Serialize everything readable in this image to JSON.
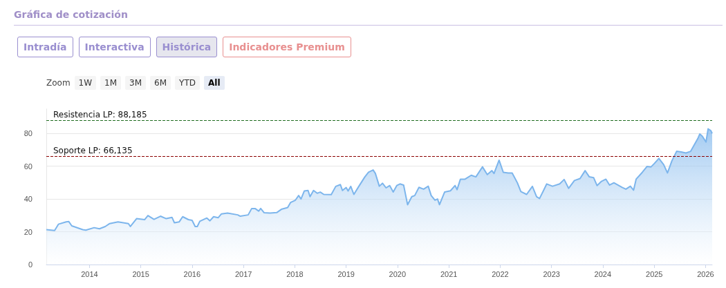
{
  "chart_data": {
    "type": "area",
    "title": "Gráfica de cotización",
    "annotations": [
      "Intradía",
      "Interactiva",
      "Histórica",
      "Indicadores Premium",
      "Zoom",
      "1W",
      "1M",
      "3M",
      "6M",
      "YTD",
      "All"
    ],
    "x": [
      "2013-02-28",
      "2013-04-28",
      "2013-05-25",
      "2013-07-19",
      "2013-08-07",
      "2013-08-28",
      "2013-11-14",
      "2013-12-06",
      "2014-02-03",
      "2014-03-13",
      "2014-04-23",
      "2014-05-25",
      "2014-07-23",
      "2014-10-05",
      "2014-10-19",
      "2014-12-02",
      "2015-01-28",
      "2015-02-21",
      "2015-04-05",
      "2015-05-21",
      "2015-07-01",
      "2015-08-11",
      "2015-08-28",
      "2015-10-01",
      "2015-10-26",
      "2015-12-06",
      "2016-01-01",
      "2016-01-23",
      "2016-02-07",
      "2016-02-25",
      "2016-04-15",
      "2016-05-07",
      "2016-06-02",
      "2016-07-05",
      "2016-07-28",
      "2016-09-09",
      "2016-11-21",
      "2016-12-09",
      "2017-02-03",
      "2017-02-28",
      "2017-03-24",
      "2017-04-19",
      "2017-05-03",
      "2017-05-28",
      "2017-07-08",
      "2017-08-25",
      "2017-09-27",
      "2017-11-11",
      "2017-12-02",
      "2018-01-05",
      "2018-01-28",
      "2018-02-14",
      "2018-03-09",
      "2018-04-05",
      "2018-04-19",
      "2018-05-14",
      "2018-06-09",
      "2018-07-01",
      "2018-07-26",
      "2018-09-17",
      "2018-10-19",
      "2018-11-21",
      "2018-12-06",
      "2019-01-01",
      "2019-01-15",
      "2019-02-03",
      "2019-02-25",
      "2019-04-01",
      "2019-05-14",
      "2019-06-09",
      "2019-07-12",
      "2019-07-28",
      "2019-08-25",
      "2019-09-17",
      "2019-10-12",
      "2019-11-07",
      "2019-12-02",
      "2019-12-27",
      "2020-01-19",
      "2020-02-14",
      "2020-03-13",
      "2020-04-12",
      "2020-05-03",
      "2020-06-02",
      "2020-07-05",
      "2020-08-07",
      "2020-08-28",
      "2020-09-24",
      "2020-10-12",
      "2020-10-26",
      "2020-12-02",
      "2021-01-12",
      "2021-02-14",
      "2021-02-28",
      "2021-03-24",
      "2021-04-26",
      "2021-06-09",
      "2021-07-12",
      "2021-08-28",
      "2021-10-01",
      "2021-11-03",
      "2021-11-18",
      "2021-12-24",
      "2022-01-23",
      "2022-02-28",
      "2022-03-27",
      "2022-05-03",
      "2022-05-28",
      "2022-07-08",
      "2022-08-18",
      "2022-09-17",
      "2022-10-08",
      "2022-11-03",
      "2022-11-28",
      "2023-01-08",
      "2023-02-28",
      "2023-04-01",
      "2023-05-03",
      "2023-06-13",
      "2023-07-23",
      "2023-08-28",
      "2023-09-27",
      "2023-10-28",
      "2023-11-21",
      "2023-12-20",
      "2024-01-23",
      "2024-02-18",
      "2024-03-20",
      "2024-05-18",
      "2024-06-13",
      "2024-07-15",
      "2024-08-07",
      "2024-08-25",
      "2024-10-08",
      "2024-11-11",
      "2024-12-09",
      "2025-01-01",
      "2025-02-03",
      "2025-03-09",
      "2025-04-05",
      "2025-05-07",
      "2025-06-09",
      "2025-07-12",
      "2025-08-14",
      "2025-09-17",
      "2025-11-07",
      "2025-11-21",
      "2025-12-09",
      "2026-01-04",
      "2026-01-19",
      "2026-02-07",
      "2026-02-17"
    ],
    "series": [
      {
        "color": "#7cb5ec",
        "values": [
          21.3,
          20.8,
          24.6,
          26,
          26.2,
          23.6,
          21.3,
          21,
          22.5,
          21.8,
          23.2,
          25,
          26,
          25,
          23.2,
          28,
          27.4,
          29.9,
          27.6,
          29.5,
          28,
          28.8,
          25.5,
          26,
          29.2,
          27.4,
          27,
          23.2,
          23.2,
          26.4,
          28.4,
          26.7,
          29.2,
          28.6,
          30.9,
          31.4,
          30.3,
          29.5,
          30.3,
          34.2,
          34.2,
          32.6,
          34.2,
          31.6,
          31.4,
          31.7,
          33.7,
          34.8,
          37.9,
          39.3,
          42.1,
          40,
          44.9,
          45.2,
          41.4,
          45.2,
          43.5,
          44.2,
          42.8,
          42.7,
          47.7,
          48.8,
          45.2,
          47,
          44.9,
          47.7,
          42.8,
          47.7,
          53.5,
          56.3,
          57.7,
          55.6,
          47.8,
          49.6,
          46.8,
          48.2,
          44.3,
          48.2,
          49.2,
          48.5,
          36.5,
          41.4,
          42.1,
          47.1,
          46,
          47.8,
          42.1,
          39.3,
          40,
          36.5,
          44.3,
          45,
          48.2,
          45.7,
          52.1,
          52.1,
          54.5,
          53.5,
          59.6,
          54.9,
          57.3,
          55.6,
          63.7,
          56.3,
          55.9,
          55.9,
          49.9,
          44.5,
          42.8,
          47.7,
          41.4,
          40.3,
          44.8,
          49.2,
          47.8,
          49.2,
          51.9,
          46.5,
          51.3,
          52.5,
          57.3,
          53.5,
          53,
          48.2,
          50.6,
          52.1,
          48.5,
          49.9,
          47.1,
          46,
          47.8,
          45.4,
          52.1,
          56.3,
          59.9,
          59.6,
          61.6,
          64.8,
          61,
          55.9,
          63.4,
          69.1,
          68.7,
          68.1,
          69.1,
          76.9,
          79.7,
          78.3,
          74.8,
          82.8,
          81.8,
          80
        ]
      }
    ],
    "xlim": [
      "2013-02-28",
      "2026-02-17"
    ],
    "xticks": [
      {
        "value": "2014",
        "label": "2014"
      },
      {
        "value": "2015",
        "label": "2015"
      },
      {
        "value": "2016",
        "label": "2016"
      },
      {
        "value": "2017",
        "label": "2017"
      },
      {
        "value": "2018",
        "label": "2018"
      },
      {
        "value": "2019",
        "label": "2019"
      },
      {
        "value": "2020",
        "label": "2020"
      },
      {
        "value": "2021",
        "label": "2021"
      },
      {
        "value": "2022",
        "label": "2022"
      },
      {
        "value": "2023",
        "label": "2023"
      },
      {
        "value": "2024",
        "label": "2024"
      },
      {
        "value": "2025",
        "label": "2025"
      },
      {
        "value": "2026",
        "label": "2026"
      }
    ],
    "ylim": [
      0,
      95
    ],
    "yticks": [
      0,
      20,
      40,
      60,
      80
    ],
    "grid": "y",
    "marker": "none",
    "ref_lines": [
      {
        "axis": "y",
        "value": 88.185,
        "label": "Resistencia LP: 88,185",
        "color": "#1f6b1f",
        "line_style": "dashed"
      },
      {
        "axis": "y",
        "value": 66.135,
        "label": "Soporte LP: 66,135",
        "color": "#8b0000",
        "line_style": "dashed"
      }
    ]
  }
}
